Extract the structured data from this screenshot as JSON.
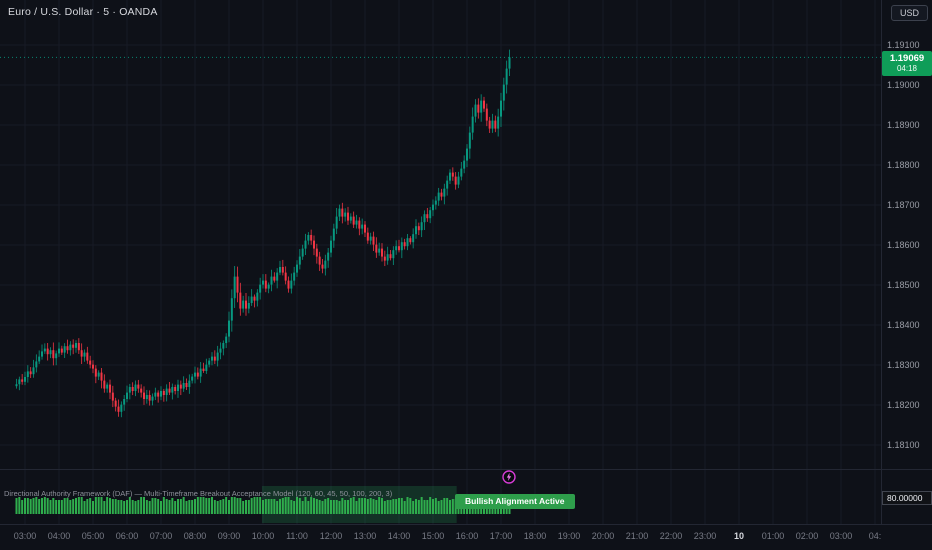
{
  "header": {
    "symbol_title": "Euro / U.S. Dollar · 5 · OANDA",
    "currency_button": "USD"
  },
  "price_axis": {
    "labels": [
      "1.19100",
      "1.19000",
      "1.18900",
      "1.18800",
      "1.18700",
      "1.18600",
      "1.18500",
      "1.18400",
      "1.18300",
      "1.18200",
      "1.18100"
    ],
    "current": {
      "price": "1.19069",
      "countdown": "04:18"
    },
    "indicator_value": "80.00000"
  },
  "time_axis": {
    "labels": [
      "03:00",
      "04:00",
      "05:00",
      "06:00",
      "07:00",
      "08:00",
      "09:00",
      "10:00",
      "11:00",
      "12:00",
      "13:00",
      "14:00",
      "15:00",
      "16:00",
      "17:00",
      "18:00",
      "19:00",
      "20:00",
      "21:00",
      "22:00",
      "23:00",
      "10",
      "01:00",
      "02:00",
      "03:00",
      "04:"
    ],
    "date_label_index": 21
  },
  "indicator": {
    "title": "Directional Authority Framework (DAF) — Multi-Timeframe Breakout Acceptance Model (120, 60, 45, 50, 100, 200, 3)",
    "badge": "Bullish Alignment Active"
  },
  "colors": {
    "up": "#089981",
    "down": "#f23645",
    "up_label": "#0f9d58",
    "badge": "#2e9e4b",
    "histogram": "#2fae4d",
    "zone": "rgba(42,166,90,0.22)",
    "signal": "#e040fb"
  },
  "chart_data": {
    "type": "candlestick",
    "symbol": "EUR/USD",
    "timeframe": "5m",
    "source": "OANDA",
    "title": "Euro / U.S. Dollar · 5 · OANDA",
    "first_candle_time": "02:45",
    "last_candle_time": "17:15",
    "current_price": 1.19069,
    "price_axis_range": [
      1.1805,
      1.1915
    ],
    "grid": true,
    "closes": [
      1.18252,
      1.18264,
      1.18258,
      1.1827,
      1.18284,
      1.18277,
      1.18294,
      1.18309,
      1.18321,
      1.18334,
      1.18341,
      1.18327,
      1.18337,
      1.18317,
      1.18329,
      1.18341,
      1.18331,
      1.18347,
      1.18337,
      1.18351,
      1.18343,
      1.18355,
      1.18337,
      1.18321,
      1.18331,
      1.18311,
      1.18301,
      1.18291,
      1.18271,
      1.18281,
      1.18261,
      1.18241,
      1.18251,
      1.18231,
      1.18211,
      1.18196,
      1.18183,
      1.18201,
      1.18215,
      1.18231,
      1.18245,
      1.18235,
      1.18251,
      1.18241,
      1.18231,
      1.18215,
      1.18225,
      1.18211,
      1.18221,
      1.18231,
      1.18221,
      1.18235,
      1.18225,
      1.18241,
      1.18231,
      1.18245,
      1.18235,
      1.18251,
      1.18241,
      1.18255,
      1.18245,
      1.18261,
      1.18271,
      1.18281,
      1.18271,
      1.18291,
      1.18285,
      1.18301,
      1.18311,
      1.18321,
      1.18311,
      1.18331,
      1.18341,
      1.18355,
      1.18371,
      1.18411,
      1.18467,
      1.18521,
      1.18481,
      1.18441,
      1.18461,
      1.18441,
      1.18455,
      1.18471,
      1.18461,
      1.18481,
      1.18501,
      1.18511,
      1.18491,
      1.18501,
      1.18521,
      1.18511,
      1.18531,
      1.18545,
      1.18531,
      1.18511,
      1.18491,
      1.18511,
      1.18531,
      1.18551,
      1.18571,
      1.18591,
      1.18611,
      1.18625,
      1.18611,
      1.18591,
      1.18571,
      1.18551,
      1.18541,
      1.18561,
      1.18581,
      1.18611,
      1.18641,
      1.18671,
      1.18691,
      1.18671,
      1.18681,
      1.18661,
      1.18671,
      1.18651,
      1.18661,
      1.18641,
      1.18651,
      1.18631,
      1.18611,
      1.18621,
      1.18601,
      1.18581,
      1.18591,
      1.18571,
      1.18561,
      1.18577,
      1.18567,
      1.18587,
      1.18597,
      1.18587,
      1.18607,
      1.18597,
      1.18617,
      1.18607,
      1.18627,
      1.18647,
      1.18637,
      1.18657,
      1.18677,
      1.18667,
      1.18687,
      1.18701,
      1.18711,
      1.18731,
      1.18721,
      1.18741,
      1.18761,
      1.18781,
      1.18771,
      1.18751,
      1.18771,
      1.18791,
      1.18811,
      1.18841,
      1.18881,
      1.18921,
      1.18951,
      1.18931,
      1.18961,
      1.18941,
      1.18911,
      1.18891,
      1.18911,
      1.18891,
      1.18921,
      1.18961,
      1.19001,
      1.19041,
      1.19069
    ],
    "lower_panel": {
      "type": "histogram",
      "value_label": "80.00000",
      "value": 80,
      "state": "Bullish Alignment Active",
      "zone_from": "10:00",
      "zone_to": "15:40",
      "zone_start_index": 87,
      "zone_end_index": 155
    }
  }
}
